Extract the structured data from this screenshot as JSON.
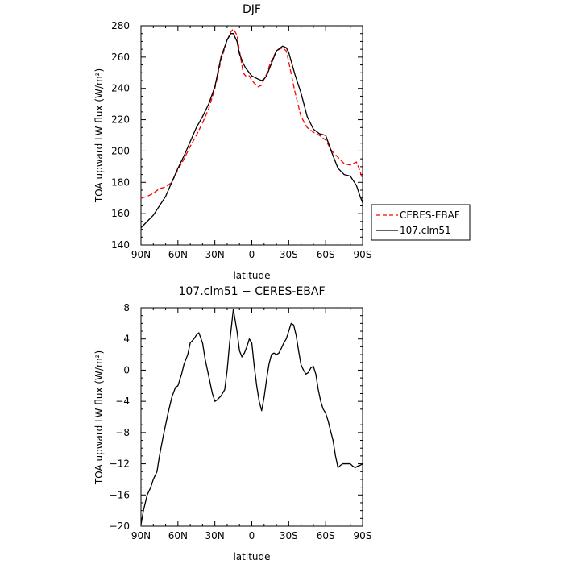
{
  "chart_data": [
    {
      "type": "line",
      "title": "DJF",
      "xlabel": "latitude",
      "ylabel": "TOA upward LW flux (W/m²)",
      "xticks": [
        "90N",
        "60N",
        "30N",
        "0",
        "30S",
        "60S",
        "90S"
      ],
      "xtick_values": [
        -90,
        -60,
        -30,
        0,
        30,
        60,
        90
      ],
      "xlim": [
        -90,
        90
      ],
      "ylim": [
        140,
        280
      ],
      "yticks": [
        140,
        160,
        180,
        200,
        220,
        240,
        260,
        280
      ],
      "grid": false,
      "legend_position": "right, outside plot, lower",
      "series": [
        {
          "name": "CERES-EBAF",
          "color": "#ff0000",
          "dash": "dashed",
          "x": [
            -90,
            -85,
            -80,
            -75,
            -70,
            -65,
            -60,
            -55,
            -50,
            -45,
            -40,
            -35,
            -30,
            -25,
            -20,
            -17,
            -15,
            -12,
            -10,
            -7,
            -5,
            -2,
            0,
            5,
            8,
            10,
            12,
            15,
            20,
            25,
            28,
            30,
            35,
            40,
            45,
            50,
            55,
            60,
            65,
            70,
            75,
            80,
            85,
            88,
            90
          ],
          "y": [
            170,
            171,
            173,
            176,
            177,
            180,
            188,
            195,
            203,
            210,
            218,
            227,
            240,
            258,
            271,
            276,
            278,
            274,
            264,
            250,
            248,
            248,
            245,
            241,
            242,
            246,
            249,
            256,
            264,
            266,
            264,
            257,
            238,
            222,
            215,
            212,
            210,
            207,
            200,
            196,
            192,
            191,
            193,
            187,
            182
          ]
        },
        {
          "name": "107.clm51",
          "color": "#000000",
          "dash": "solid",
          "x": [
            -90,
            -85,
            -80,
            -75,
            -70,
            -65,
            -60,
            -55,
            -50,
            -45,
            -40,
            -35,
            -30,
            -25,
            -20,
            -17,
            -15,
            -12,
            -10,
            -7,
            -5,
            -2,
            0,
            5,
            8,
            10,
            12,
            15,
            20,
            25,
            28,
            30,
            35,
            40,
            45,
            50,
            55,
            60,
            65,
            70,
            75,
            80,
            85,
            88,
            90
          ],
          "y": [
            151,
            155,
            159,
            165,
            171,
            180,
            189,
            197,
            206,
            215,
            222,
            230,
            241,
            260,
            271,
            275,
            275,
            270,
            262,
            256,
            253,
            250,
            248,
            246,
            245,
            246,
            248,
            254,
            264,
            267,
            266,
            263,
            249,
            237,
            222,
            214,
            211,
            210,
            199,
            189,
            185,
            184,
            178,
            171,
            167
          ]
        }
      ]
    },
    {
      "type": "line",
      "title": "107.clm51 − CERES-EBAF",
      "xlabel": "latitude",
      "ylabel": "TOA upward LW flux (W/m²)",
      "xticks": [
        "90N",
        "60N",
        "30N",
        "0",
        "30S",
        "60S",
        "90S"
      ],
      "xtick_values": [
        -90,
        -60,
        -30,
        0,
        30,
        60,
        90
      ],
      "xlim": [
        -90,
        90
      ],
      "ylim": [
        -20,
        8
      ],
      "yticks": [
        -20,
        -16,
        -12,
        -8,
        -4,
        0,
        4,
        8
      ],
      "grid": false,
      "series": [
        {
          "color": "#000000",
          "dash": "solid",
          "x": [
            -90,
            -88,
            -85,
            -82,
            -80,
            -77,
            -75,
            -72,
            -70,
            -68,
            -65,
            -62,
            -60,
            -57,
            -55,
            -52,
            -50,
            -47,
            -45,
            -43,
            -40,
            -38,
            -36,
            -34,
            -32,
            -30,
            -28,
            -25,
            -22,
            -20,
            -18,
            -15,
            -12,
            -10,
            -8,
            -6,
            -4,
            -2,
            0,
            2,
            4,
            6,
            8,
            10,
            12,
            14,
            16,
            18,
            20,
            22,
            24,
            26,
            28,
            30,
            32,
            34,
            36,
            38,
            40,
            42,
            44,
            46,
            48,
            50,
            52,
            54,
            56,
            58,
            60,
            62,
            64,
            66,
            68,
            70,
            72,
            74,
            76,
            78,
            80,
            82,
            84,
            86,
            88,
            90
          ],
          "y": [
            -19.8,
            -18,
            -16,
            -15,
            -14,
            -13,
            -11,
            -8.5,
            -7,
            -5.5,
            -3.5,
            -2.2,
            -2,
            -0.5,
            0.8,
            2,
            3.5,
            4,
            4.5,
            4.8,
            3.5,
            1.5,
            0,
            -1.5,
            -3,
            -4,
            -3.8,
            -3.3,
            -2.5,
            0,
            3.5,
            7.8,
            5,
            2.5,
            1.7,
            2.2,
            3,
            4,
            3.5,
            0.5,
            -2,
            -4,
            -5.2,
            -3.5,
            -1.2,
            0.8,
            2,
            2.2,
            2,
            2.2,
            2.8,
            3.5,
            4,
            5,
            6,
            5.8,
            4.5,
            2.5,
            0.7,
            0,
            -0.5,
            -0.3,
            0.3,
            0.5,
            -0.5,
            -2.5,
            -4,
            -5,
            -5.5,
            -6.5,
            -7.8,
            -9,
            -11,
            -12.5,
            -12.2,
            -12,
            -12,
            -12,
            -12,
            -12.3,
            -12.5,
            -12.3,
            -12.2,
            -12
          ]
        }
      ]
    }
  ]
}
